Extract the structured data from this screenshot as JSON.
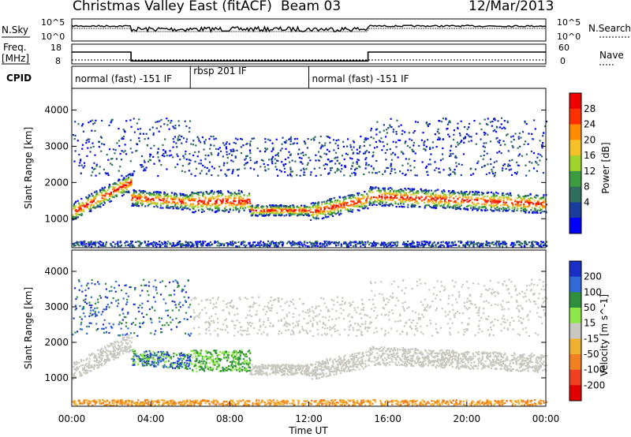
{
  "header": {
    "title": "Christmas Valley East (fitACF)",
    "beam": "Beam 03",
    "date": "12/Mar/2013"
  },
  "status_panels": {
    "nsky_label": "N.Sky",
    "nsky_ticks": [
      "10^5",
      "10^0"
    ],
    "nsearch_label": "N.Search",
    "nsearch_ticks": [
      "10^5",
      "10^0"
    ],
    "freq_label": "Freq.",
    "freq_unit": "[MHz]",
    "freq_ticks": [
      18,
      8
    ],
    "nave_label": "Nave",
    "nave_ticks": [
      60,
      0
    ],
    "cpid_label": "CPID",
    "cpid_segments": [
      {
        "label": "normal (fast) -151 IF",
        "start_hour": 0,
        "end_hour": 6
      },
      {
        "label": "rbsp 201 IF",
        "start_hour": 6,
        "end_hour": 12
      },
      {
        "label": "normal (fast) -151 IF",
        "start_hour": 12,
        "end_hour": 24
      }
    ],
    "freq_series": {
      "x": [
        0,
        3,
        3,
        15,
        15,
        24
      ],
      "values": [
        14,
        14,
        9.5,
        9.5,
        14,
        14
      ]
    },
    "nave_series": {
      "x": [
        0,
        24
      ],
      "values": [
        12,
        12
      ]
    }
  },
  "chart_data": [
    {
      "type": "heatmap",
      "name": "power",
      "ylabel": "Slant Range [km]",
      "y_ticks": [
        1000,
        2000,
        3000,
        4000
      ],
      "ylim": [
        200,
        4600
      ],
      "xlim": [
        0,
        24
      ],
      "colorbar": {
        "label": "Power [dB]",
        "ticks": [
          4,
          8,
          12,
          16,
          20,
          24,
          28
        ],
        "colors": [
          "#0000ff",
          "#1a3c9c",
          "#2e6f5c",
          "#3c9b3c",
          "#9fd22a",
          "#f6c028",
          "#ff8c00",
          "#ff3000",
          "#ee0000"
        ]
      },
      "features": [
        {
          "label": "F-region scatter",
          "x": [
            0,
            1,
            2,
            3,
            4,
            5,
            6
          ],
          "y": [
            1300,
            1550,
            1800,
            2050,
            1600,
            1500,
            1500
          ]
        },
        {
          "label": "F-region scatter (afternoon)",
          "x": [
            15,
            16,
            18,
            20,
            22,
            24
          ],
          "y": [
            1800,
            1650,
            1500,
            1400,
            1350,
            1450
          ]
        },
        {
          "label": "far echoes",
          "x": [
            3,
            4,
            5,
            16,
            19,
            23
          ],
          "y": [
            2800,
            2700,
            2600,
            3400,
            3000,
            2700
          ]
        }
      ]
    },
    {
      "type": "heatmap",
      "name": "velocity",
      "ylabel": "Slant Range [km]",
      "y_ticks": [
        1000,
        2000,
        3000,
        4000
      ],
      "ylim": [
        200,
        4600
      ],
      "xlim": [
        0,
        24
      ],
      "xlabel": "Time UT",
      "x_ticks": [
        "00:00",
        "04:00",
        "08:00",
        "12:00",
        "16:00",
        "20:00",
        "00:00"
      ],
      "colorbar": {
        "label": "Velocity [m s^-1]",
        "ticks": [
          200,
          100,
          50,
          15,
          -15,
          -50,
          -100,
          -200
        ],
        "colors": [
          "#1a2fc8",
          "#2f6ad6",
          "#2f8f3c",
          "#8ee84a",
          "#c8c8c0",
          "#f0b030",
          "#f08020",
          "#f04020",
          "#e00000"
        ]
      }
    }
  ]
}
